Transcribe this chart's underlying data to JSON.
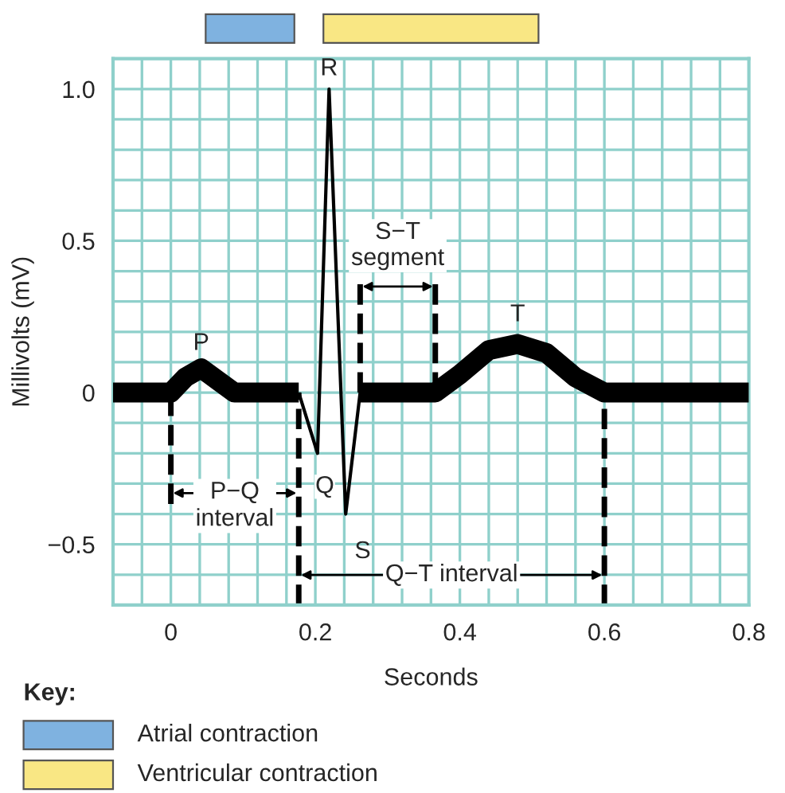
{
  "chart_data": {
    "type": "line",
    "xlabel": "Seconds",
    "ylabel": "Millivolts (mV)",
    "xlim": [
      -0.08,
      0.8
    ],
    "ylim": [
      -0.7,
      1.1
    ],
    "xticks": [
      0,
      0.2,
      0.4,
      0.6,
      0.8
    ],
    "yticks": [
      {
        "value": -0.5,
        "label": "−0.5"
      },
      0,
      0.5,
      {
        "value": 1.0,
        "label": "1.0"
      }
    ],
    "grid": true,
    "marker": "none",
    "line_style": "solid",
    "series": [
      {
        "color": "#000000",
        "x": [
          -0.08,
          0,
          0.02,
          0.042,
          0.065,
          0.088,
          0.177,
          null,
          0.262,
          0.366,
          0.4,
          0.44,
          0.48,
          0.52,
          0.56,
          0.6,
          0.8
        ],
        "values": [
          0,
          0,
          0.05,
          0.08,
          0.04,
          0,
          0,
          null,
          0,
          0,
          0.06,
          0.14,
          0.16,
          0.13,
          0.05,
          0,
          0
        ]
      },
      {
        "color": "#000000",
        "x": [
          0.177,
          0.203,
          0.219,
          0.242,
          0.262
        ],
        "values": [
          0,
          -0.2,
          1.0,
          -0.4,
          0
        ]
      }
    ],
    "ref_lines": [
      {
        "axis": "x",
        "value": 0,
        "line_style": "dashed"
      },
      {
        "axis": "x",
        "value": 0.177,
        "line_style": "dashed"
      },
      {
        "axis": "x",
        "value": 0.262,
        "line_style": "dashed"
      },
      {
        "axis": "x",
        "value": 0.366,
        "line_style": "dashed"
      },
      {
        "axis": "x",
        "value": 0.6,
        "line_style": "dashed"
      }
    ],
    "annotations": [
      {
        "text": "P",
        "x": 0.042,
        "y": 0.08
      },
      {
        "text": "Q",
        "x": 0.203,
        "y": -0.2
      },
      {
        "text": "R",
        "x": 0.219,
        "y": 1.0
      },
      {
        "text": "S",
        "x": 0.242,
        "y": -0.4
      },
      {
        "text": "T",
        "x": 0.48,
        "y": 0.16
      },
      "P−Q\ninterval",
      "S−T\nsegment",
      "Q−T interval",
      "Key:",
      "Atrial contraction",
      "Ventricular contraction"
    ]
  }
}
